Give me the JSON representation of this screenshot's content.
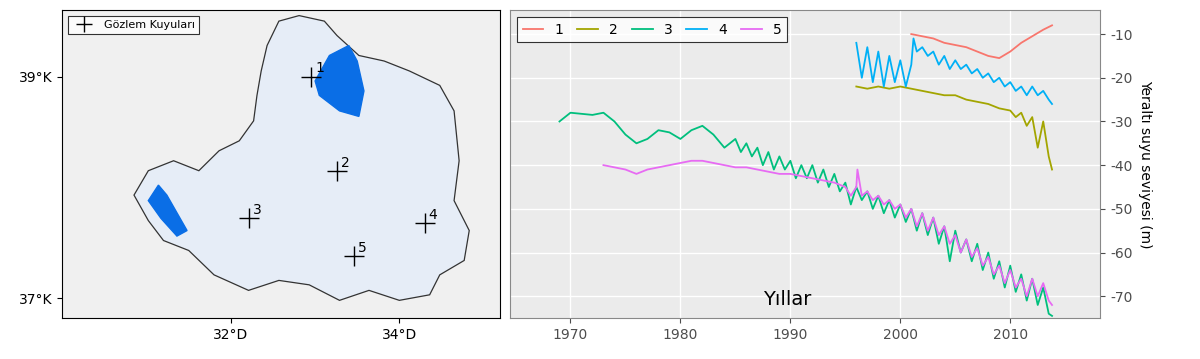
{
  "chart_data": [
    {
      "type": "map",
      "xlim": [
        30.0,
        35.2
      ],
      "ylim": [
        36.82,
        39.6
      ],
      "xticks": [
        {
          "value": 32,
          "label": "32°D"
        },
        {
          "value": 34,
          "label": "34°D"
        }
      ],
      "yticks": [
        {
          "value": 37,
          "label": "37°K"
        },
        {
          "value": 39,
          "label": "39°K"
        }
      ],
      "legend": "upper left",
      "points": {
        "name": "Gözlem Kuyuları",
        "color": "#000000",
        "marker": "plus",
        "labels": [
          "1",
          "2",
          "3",
          "4",
          "5"
        ],
        "x": [
          32.95,
          33.26,
          32.21,
          34.3,
          33.46
        ],
        "y": [
          39.0,
          38.15,
          37.72,
          37.68,
          37.38
        ]
      },
      "outline": {
        "color": "#e6edf7",
        "x": [
          32.36,
          32.43,
          32.57,
          32.81,
          33.11,
          33.26,
          33.52,
          33.82,
          34.12,
          34.48,
          34.65,
          34.71,
          34.65,
          34.83,
          34.77,
          34.48,
          34.36,
          34.0,
          33.64,
          33.29,
          32.93,
          32.57,
          32.21,
          31.8,
          31.5,
          31.2,
          31.02,
          30.85,
          31.02,
          31.32,
          31.62,
          31.86,
          32.1,
          32.27,
          32.31
        ],
        "y": [
          39.05,
          39.28,
          39.5,
          39.55,
          39.5,
          39.37,
          39.19,
          39.14,
          39.05,
          38.92,
          38.69,
          38.24,
          37.88,
          37.61,
          37.34,
          37.21,
          37.03,
          36.98,
          37.07,
          36.98,
          37.12,
          37.16,
          37.07,
          37.21,
          37.43,
          37.52,
          37.7,
          37.93,
          38.15,
          38.24,
          38.15,
          38.33,
          38.42,
          38.6,
          38.83
        ]
      },
      "lakes": [
        {
          "color": "#0a6ee6",
          "x": [
            33.0,
            33.17,
            33.4,
            33.5,
            33.58,
            33.52,
            33.29,
            33.05
          ],
          "y": [
            38.96,
            39.19,
            39.28,
            39.14,
            38.87,
            38.64,
            38.69,
            38.83
          ]
        },
        {
          "color": "#0a6ee6",
          "x": [
            31.02,
            31.14,
            31.24,
            31.48,
            31.36,
            31.17
          ],
          "y": [
            37.88,
            38.02,
            37.93,
            37.61,
            37.56,
            37.72
          ]
        }
      ]
    },
    {
      "type": "line",
      "xlabel": "Yıllar",
      "ylabel": "Yeraltı suyu seviyesi (m)",
      "xlim": [
        1964.5,
        2018.2
      ],
      "ylim": [
        -75,
        -4.5
      ],
      "xticks": [
        1970,
        1980,
        1990,
        2000,
        2010
      ],
      "yticks": [
        -70,
        -60,
        -50,
        -40,
        -30,
        -20,
        -10
      ],
      "grid": true,
      "legend": "upper left",
      "series": [
        {
          "name": "1",
          "color": "#F8766D",
          "x": [
            2001,
            2002,
            2003,
            2004,
            2005,
            2006,
            2007,
            2008,
            2009,
            2010,
            2011,
            2012,
            2013,
            2013.8
          ],
          "values": [
            -10,
            -10.5,
            -11,
            -12,
            -12.5,
            -13,
            -14,
            -15,
            -15.5,
            -14,
            -12,
            -10.5,
            -9,
            -8
          ]
        },
        {
          "name": "2",
          "color": "#A3A500",
          "x": [
            1996,
            1997,
            1998,
            1999,
            2000,
            2001,
            2002,
            2003,
            2004,
            2005,
            2006,
            2007,
            2008,
            2009,
            2010,
            2010.5,
            2011,
            2011.5,
            2012,
            2012.5,
            2013,
            2013.5,
            2013.8
          ],
          "values": [
            -22,
            -22.5,
            -22,
            -22.5,
            -22,
            -22.5,
            -23,
            -23.5,
            -24,
            -24,
            -25,
            -25.5,
            -26,
            -27,
            -27.5,
            -29,
            -28,
            -31,
            -29,
            -36,
            -30,
            -38,
            -41
          ]
        },
        {
          "name": "3",
          "color": "#00BF7D",
          "x": [
            1969,
            1970,
            1972,
            1973,
            1974,
            1975,
            1976,
            1977,
            1978,
            1979,
            1980,
            1981,
            1982,
            1983,
            1984,
            1985,
            1985.5,
            1986,
            1986.5,
            1987,
            1987.5,
            1988,
            1988.5,
            1989,
            1989.5,
            1990,
            1990.5,
            1991,
            1991.5,
            1992,
            1992.5,
            1993,
            1993.5,
            1994,
            1994.5,
            1995,
            1995.5,
            1996,
            1996.5,
            1997,
            1997.5,
            1998,
            1998.5,
            1999,
            1999.5,
            2000,
            2000.5,
            2001,
            2001.5,
            2002,
            2002.5,
            2003,
            2003.5,
            2004,
            2004.5,
            2005,
            2005.5,
            2006,
            2006.5,
            2007,
            2007.5,
            2008,
            2008.5,
            2009,
            2009.5,
            2010,
            2010.5,
            2011,
            2011.5,
            2012,
            2012.5,
            2013,
            2013.5,
            2013.8
          ],
          "values": [
            -30,
            -28,
            -28.5,
            -28,
            -30,
            -33,
            -35,
            -34,
            -32,
            -32.5,
            -34,
            -32,
            -31,
            -33,
            -36,
            -34,
            -37,
            -35,
            -38,
            -36,
            -40,
            -37,
            -41,
            -38,
            -41,
            -39,
            -43,
            -40,
            -43,
            -40,
            -44,
            -41,
            -45,
            -42,
            -46,
            -44,
            -49,
            -45,
            -48,
            -46,
            -50,
            -47,
            -51,
            -48,
            -52,
            -49,
            -53,
            -50,
            -55,
            -51,
            -56,
            -52,
            -58,
            -54,
            -62,
            -55,
            -60,
            -57,
            -62,
            -58,
            -64,
            -60,
            -66,
            -62,
            -68,
            -63,
            -69,
            -65,
            -71,
            -66,
            -72,
            -68,
            -74,
            -74.5
          ]
        },
        {
          "name": "4",
          "color": "#00B0F6",
          "x": [
            1996,
            1996.5,
            1997,
            1997.5,
            1998,
            1998.5,
            1999,
            1999.5,
            2000,
            2000.5,
            2001,
            2001.2,
            2001.5,
            2002,
            2002.5,
            2003,
            2003.5,
            2004,
            2004.5,
            2005,
            2005.5,
            2006,
            2006.5,
            2007,
            2007.5,
            2008,
            2008.5,
            2009,
            2009.5,
            2010,
            2010.5,
            2011,
            2011.5,
            2012,
            2012.5,
            2013,
            2013.5,
            2013.8
          ],
          "values": [
            -12,
            -20,
            -13,
            -21,
            -14,
            -22,
            -15,
            -21,
            -16,
            -22,
            -17,
            -11,
            -14,
            -13,
            -15,
            -14,
            -17,
            -15,
            -18,
            -16,
            -18,
            -17,
            -19,
            -18,
            -20,
            -19,
            -21,
            -20,
            -22,
            -21,
            -23,
            -22,
            -24,
            -22,
            -24,
            -23,
            -25,
            -26
          ]
        },
        {
          "name": "5",
          "color": "#E76BF3",
          "x": [
            1973,
            1974,
            1975,
            1976,
            1977,
            1978,
            1979,
            1980,
            1981,
            1982,
            1983,
            1984,
            1985,
            1986,
            1987,
            1988,
            1989,
            1990,
            1991,
            1992,
            1993,
            1994,
            1995,
            1995.5,
            1996,
            1996.1,
            1996.5,
            1997,
            1997.5,
            1998,
            1998.5,
            1999,
            1999.5,
            2000,
            2000.5,
            2001,
            2001.5,
            2002,
            2002.5,
            2003,
            2003.5,
            2004,
            2004.5,
            2005,
            2005.5,
            2006,
            2006.5,
            2007,
            2007.5,
            2008,
            2008.5,
            2009,
            2009.5,
            2010,
            2010.5,
            2011,
            2011.5,
            2012,
            2012.5,
            2013,
            2013.5,
            2013.8
          ],
          "values": [
            -40,
            -40.5,
            -41,
            -42,
            -41,
            -40.5,
            -40,
            -39.5,
            -39,
            -39,
            -39.5,
            -40,
            -40.5,
            -40.5,
            -41,
            -41.5,
            -42,
            -42,
            -42.5,
            -43,
            -43.5,
            -44,
            -45,
            -47,
            -45,
            -41,
            -47,
            -46,
            -48,
            -47,
            -49,
            -48,
            -50,
            -49,
            -52,
            -50,
            -54,
            -51,
            -55,
            -52,
            -56,
            -54,
            -58,
            -56,
            -60,
            -57,
            -61,
            -59,
            -63,
            -61,
            -65,
            -63,
            -67,
            -64,
            -68,
            -66,
            -70,
            -66,
            -70,
            -67,
            -71,
            -72
          ]
        }
      ]
    }
  ]
}
